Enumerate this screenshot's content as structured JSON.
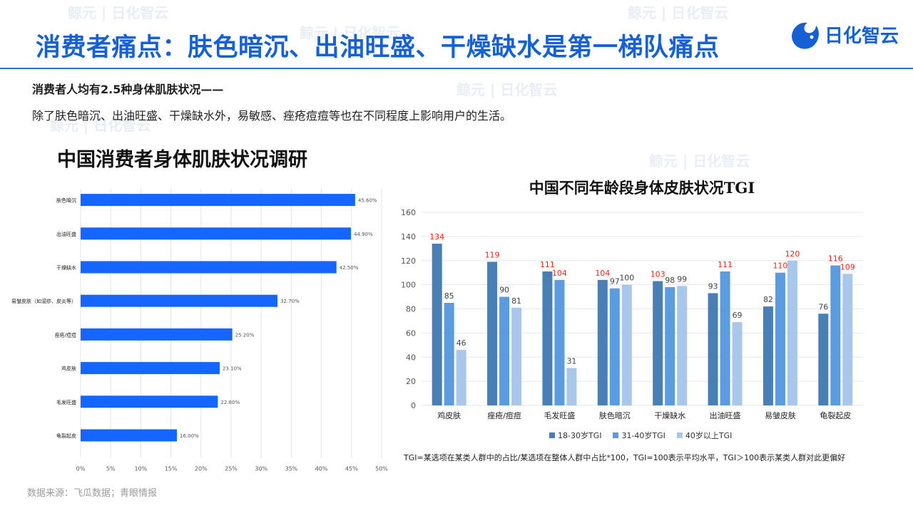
{
  "header": {
    "title": "消费者痛点：肤色暗沉、出油旺盛、干燥缺水是第一梯队痛点",
    "logo_text": "日化智云"
  },
  "intro": {
    "heading": "消费者人均有2.5种身体肌肤状况——",
    "body": "除了肤色暗沉、出油旺盛、干燥缺水外，易敏感、痤疮痘痘等也在不同程度上影响用户的生活。"
  },
  "watermark": "鲸元 | 日化智云",
  "chart_data": [
    {
      "type": "bar",
      "orientation": "horizontal",
      "title": "中国消费者身体肌肤状况调研",
      "categories": [
        "肤色暗沉",
        "出油旺盛",
        "干燥缺水",
        "易皱皮肤（如湿疹、皮炎等）",
        "痤疮/痘痘",
        "鸡皮肤",
        "毛发旺盛",
        "龟裂起皮"
      ],
      "values": [
        45.6,
        44.9,
        42.5,
        32.7,
        25.2,
        23.1,
        22.8,
        16.0
      ],
      "value_labels": [
        "45.60%",
        "44.90%",
        "42.50%",
        "32.70%",
        "25.20%",
        "23.10%",
        "22.80%",
        "16.00%"
      ],
      "xlim": [
        0,
        50
      ],
      "x_ticks": [
        "0%",
        "5%",
        "10%",
        "15%",
        "20%",
        "25%",
        "30%",
        "35%",
        "40%",
        "45%",
        "50%"
      ],
      "bar_color": "#1565ff",
      "grid": true
    },
    {
      "type": "bar",
      "title": "中国不同年龄段身体皮肤状况TGI",
      "categories": [
        "鸡皮肤",
        "痤疮/痘痘",
        "毛发旺盛",
        "肤色暗沉",
        "干燥缺水",
        "出油旺盛",
        "易皱皮肤",
        "龟裂起皮"
      ],
      "series": [
        {
          "name": "18-30岁TGI",
          "values": [
            134,
            119,
            111,
            104,
            103,
            93,
            82,
            76
          ],
          "color": "#4a7fb5"
        },
        {
          "name": "31-40岁TGI",
          "values": [
            85,
            90,
            104,
            97,
            98,
            111,
            110,
            116
          ],
          "color": "#5b9be0"
        },
        {
          "name": "40岁以上TGI",
          "values": [
            46,
            81,
            31,
            100,
            99,
            69,
            120,
            109
          ],
          "color": "#a9c6eb"
        }
      ],
      "ylim": [
        0,
        160
      ],
      "y_ticks": [
        0,
        20,
        40,
        60,
        80,
        100,
        120,
        140,
        160
      ],
      "highlight_color": "#e0281c",
      "grid": true
    }
  ],
  "note": "TGI=某选项在某类人群中的占比/某选项在整体人群中占比*100，TGI=100表示平均水平，TGI＞100表示某类人群对此更偏好",
  "source": "数据来源：飞瓜数据；青眼情报"
}
